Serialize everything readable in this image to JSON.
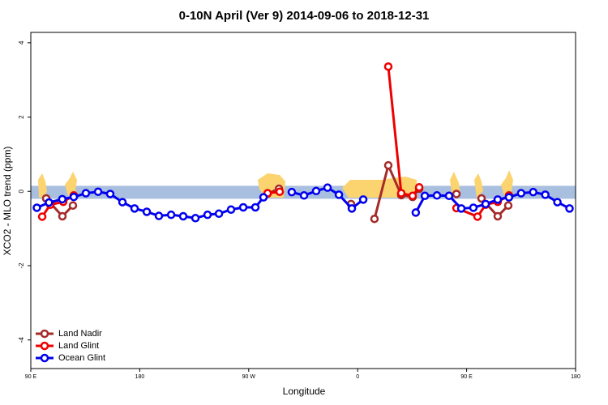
{
  "chart_data": {
    "type": "line",
    "title": "0-10N April (Ver 9)   2014-09-06 to 2018-12-31",
    "x_label": "Longitude",
    "y_label": "XCO2 - MLO trend (ppm)",
    "xlim": [
      90,
      540
    ],
    "xticks": [
      {
        "value": 90,
        "label": "90 E"
      },
      180,
      {
        "value": 270,
        "label": "90 W"
      },
      {
        "value": 360,
        "label": "0"
      },
      {
        "value": 450,
        "label": "90 E"
      },
      {
        "value": 540,
        "label": "180"
      }
    ],
    "ylim": [
      -4.77,
      4.28
    ],
    "yticks": [
      -4,
      -2,
      0,
      2,
      4
    ],
    "band": {
      "ymin": -0.2,
      "ymax": 0.15,
      "color": "#a9bfe0"
    },
    "legend": "bottom-left",
    "series": [
      {
        "name": "Land Nadir",
        "color": "#a52a2a",
        "x": [
          102.7,
          116.1,
          124.8,
          null,
          285.6,
          295,
          null,
          354.5,
          null,
          373.9,
          385.3,
          396,
          405.4,
          410.8,
          null,
          441.6,
          null,
          462.3,
          475.7,
          484.4
        ],
        "values": [
          -0.19,
          -0.67,
          -0.38,
          null,
          -0.06,
          0.07,
          null,
          -0.34,
          null,
          -0.74,
          0.7,
          -0.1,
          -0.15,
          0.07,
          null,
          -0.07,
          null,
          -0.19,
          -0.67,
          -0.38
        ]
      },
      {
        "name": "Land Glint",
        "color": "#ee0000",
        "x": [
          99.4,
          106.1,
          116.8,
          125.5,
          null,
          285.6,
          295.6,
          null,
          385.3,
          396,
          405.4,
          410.8,
          null,
          441.6,
          459,
          465.7,
          475.7,
          485
        ],
        "values": [
          -0.68,
          -0.36,
          -0.28,
          -0.11,
          null,
          -0.05,
          -0.01,
          null,
          3.36,
          -0.05,
          -0.12,
          0.11,
          null,
          -0.45,
          -0.68,
          -0.36,
          -0.28,
          -0.11
        ]
      },
      {
        "name": "Ocean Glint",
        "color": "#0000ee",
        "x": [
          95,
          105,
          116,
          125.5,
          135.5,
          145.6,
          155.6,
          165.7,
          175.7,
          185.8,
          195.8,
          205.9,
          215.9,
          226,
          236,
          245.4,
          255.4,
          265.5,
          275.5,
          282.2,
          null,
          305.6,
          315.7,
          325.7,
          335.1,
          344.5,
          355.2,
          364.6,
          null,
          408,
          415.5,
          425.5,
          435.5,
          445.6,
          455.6,
          465.7,
          475.7,
          485,
          495,
          505,
          515,
          525,
          535
        ],
        "values": [
          -0.44,
          -0.3,
          -0.21,
          -0.15,
          -0.05,
          -0.01,
          -0.07,
          -0.29,
          -0.46,
          -0.55,
          -0.66,
          -0.63,
          -0.67,
          -0.72,
          -0.63,
          -0.6,
          -0.49,
          -0.43,
          -0.43,
          -0.16,
          null,
          -0.02,
          -0.11,
          0.01,
          0.1,
          -0.09,
          -0.46,
          -0.22,
          null,
          -0.57,
          -0.12,
          -0.11,
          -0.12,
          -0.46,
          -0.44,
          -0.34,
          -0.22,
          -0.16,
          -0.05,
          -0.02,
          -0.09,
          -0.29,
          -0.46
        ]
      }
    ]
  }
}
